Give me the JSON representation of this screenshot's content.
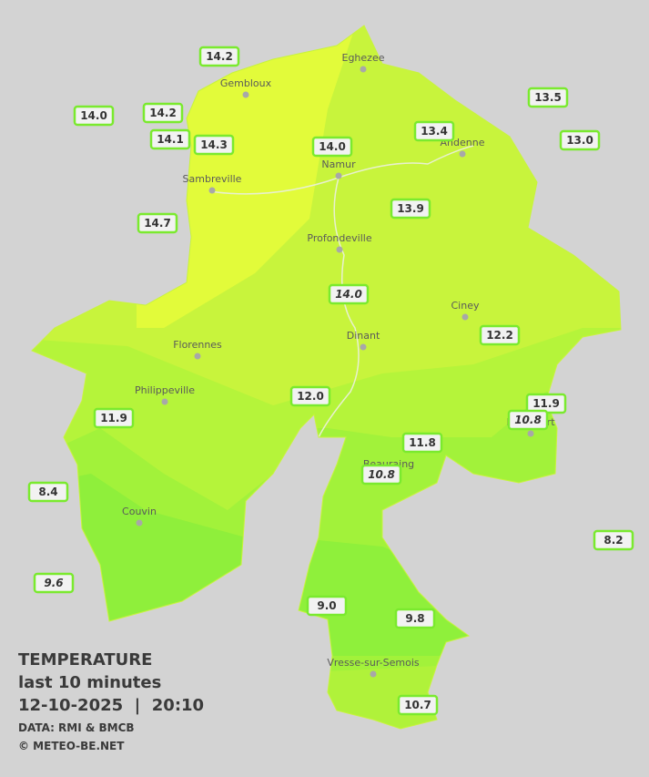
{
  "legend": {
    "title": "TEMPERATURE",
    "period": "last 10 minutes",
    "datetime": "12-10-2025  |  20:10",
    "source": "DATA: RMI & BMCB",
    "copyright": "© METEO-BE.NET"
  },
  "cities": [
    "Eghezee",
    "Gembloux",
    "Andenne",
    "Namur",
    "Sambreville",
    "Profondeville",
    "Ciney",
    "Dinant",
    "Florennes",
    "Philippeville",
    "Beauraing",
    "Rochefort",
    "Couvin",
    "Vresse-sur-Semois"
  ],
  "stations": [
    "14.2",
    "14.0",
    "14.2",
    "14.1",
    "14.3",
    "14.0",
    "13.4",
    "13.5",
    "13.0",
    "14.7",
    "13.9",
    "14.0",
    "12.2",
    "12.0",
    "11.9",
    "11.9",
    "10.8",
    "11.8",
    "10.8",
    "8.4",
    "8.2",
    "9.6",
    "9.0",
    "9.8",
    "10.7"
  ]
}
